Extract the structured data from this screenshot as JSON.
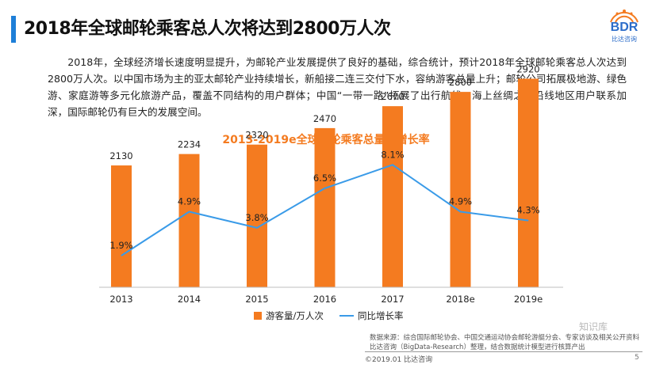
{
  "header": {
    "title": "2018年全球邮轮乘客总人次将达到2800万人次",
    "accent_color": "#1e7fd8"
  },
  "logo": {
    "text": "BDR",
    "subtitle": "比达咨询",
    "color": "#2b6cc9",
    "icon": "bdr-logo-icon"
  },
  "body_text": "2018年，全球经济增长速度明显提升，为邮轮产业发展提供了良好的基础，综合统计，预计2018年全球邮轮乘客总人次达到2800万人次。以中国市场为主的亚太邮轮产业持续增长，新船接二连三交付下水，容纳游客总量上升；邮轮公司拓展极地游、绿色游、家庭游等多元化旅游产品，覆盖不同结构的用户群体；中国“一带一路”拓展了出行航线，海上丝绸之路沿线地区用户联系加深，国际邮轮仍有巨大的发展空间。",
  "chart_data": {
    "type": "bar",
    "title": "2013-2019e全球邮轮乘客总量及增长率",
    "categories": [
      "2013",
      "2014",
      "2015",
      "2016",
      "2017",
      "2018e",
      "2019e"
    ],
    "series": [
      {
        "name": "游客量/万人次",
        "kind": "bar",
        "color": "#f47b20",
        "values": [
          2130,
          2234,
          2320,
          2470,
          2670,
          2800,
          2920
        ],
        "labels": [
          "2130",
          "2234",
          "2320",
          "2470",
          "2670",
          "2800",
          "2920"
        ]
      },
      {
        "name": "同比增长率",
        "kind": "line",
        "color": "#3a9be8",
        "values": [
          1.9,
          4.9,
          3.8,
          6.5,
          8.1,
          4.9,
          4.3
        ],
        "labels": [
          "1.9%",
          "4.9%",
          "3.8%",
          "6.5%",
          "8.1%",
          "4.9%",
          "4.3%"
        ]
      }
    ],
    "title_color": "#f47b20",
    "legend_position": "bottom"
  },
  "footer": {
    "source": "数据来源：综合国际邮轮协会、中国交通运动协会邮轮游艇分会、专家访谈及相关公开资料比达咨询（BigData-Research）整理，结合数据统计模型进行核算产出",
    "copyright": "©2019.01 比达咨询",
    "page_number": "5",
    "watermark": "知识库"
  }
}
